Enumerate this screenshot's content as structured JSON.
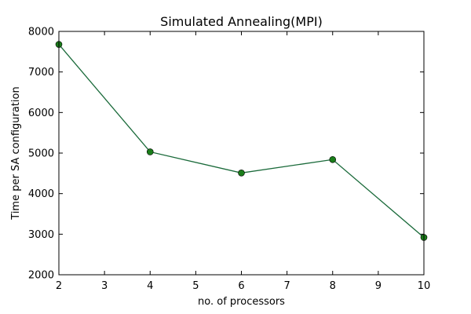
{
  "chart_data": {
    "type": "line",
    "title": "Simulated Annealing(MPI)",
    "xlabel": "no. of processors",
    "ylabel": "Time per SA configuration",
    "xlim": [
      2,
      10
    ],
    "ylim": [
      2000,
      8000
    ],
    "xticks": [
      2,
      3,
      4,
      5,
      6,
      7,
      8,
      9,
      10
    ],
    "yticks": [
      2000,
      3000,
      4000,
      5000,
      6000,
      7000,
      8000
    ],
    "grid": false,
    "series": [
      {
        "x": [
          2,
          4,
          6,
          8,
          10
        ],
        "y": [
          7680,
          5030,
          4510,
          4840,
          2920
        ],
        "line_color": "#1a6a3a",
        "marker_color": "#1a7d1a",
        "marker": "circle"
      }
    ]
  }
}
